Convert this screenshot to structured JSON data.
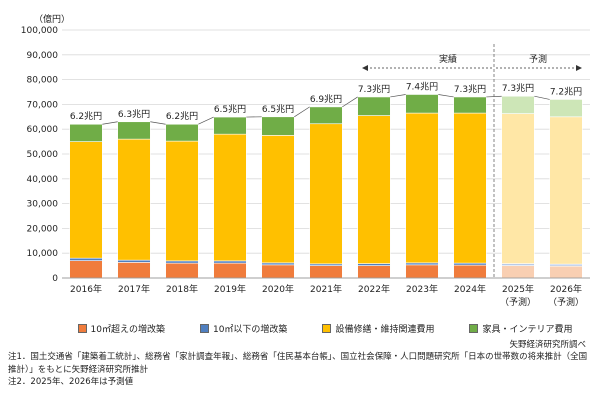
{
  "chart_data": {
    "type": "bar",
    "stacked": true,
    "unit_label": "（億円）",
    "categories": [
      "2016年",
      "2017年",
      "2018年",
      "2019年",
      "2020年",
      "2021年",
      "2022年",
      "2023年",
      "2024年",
      "2025年",
      "2026年"
    ],
    "category_sublabels": [
      "",
      "",
      "",
      "",
      "",
      "",
      "",
      "",
      "",
      "（予測）",
      "（予測）"
    ],
    "forecast_from_index": 9,
    "totals_labels": [
      "6.2兆円",
      "6.3兆円",
      "6.2兆円",
      "6.5兆円",
      "6.5兆円",
      "6.9兆円",
      "7.3兆円",
      "7.4兆円",
      "7.3兆円",
      "7.3兆円",
      "7.2兆円"
    ],
    "period_labels": {
      "actual": "実績",
      "forecast": "予測"
    },
    "ylim": [
      0,
      100000
    ],
    "yticks": [
      0,
      10000,
      20000,
      30000,
      40000,
      50000,
      60000,
      70000,
      80000,
      90000,
      100000
    ],
    "ytick_labels": [
      "0",
      "10,000",
      "20,000",
      "30,000",
      "40,000",
      "50,000",
      "60,000",
      "70,000",
      "80,000",
      "90,000",
      "100,000"
    ],
    "series": [
      {
        "name": "10㎡超えの増改築",
        "color": "#F07C3C",
        "forecast_color": "#F9CFB2",
        "values": [
          7000,
          6300,
          6000,
          6000,
          5300,
          5000,
          5000,
          5300,
          5200,
          5000,
          4800
        ]
      },
      {
        "name": "10㎡以下の増改築",
        "color": "#4F7FC0",
        "forecast_color": "#B9CBE8",
        "values": [
          1000,
          900,
          900,
          900,
          800,
          700,
          800,
          800,
          800,
          800,
          800
        ]
      },
      {
        "name": "設備修繕・維持関連費用",
        "color": "#FFC000",
        "forecast_color": "#FFE7A6",
        "values": [
          47000,
          48800,
          48300,
          51100,
          51400,
          56500,
          59700,
          60400,
          60500,
          60500,
          59400
        ]
      },
      {
        "name": "家具・インテリア費用",
        "color": "#70AD47",
        "forecast_color": "#CDE6B7",
        "values": [
          7000,
          7000,
          6800,
          6900,
          7500,
          6800,
          7500,
          7500,
          6500,
          7000,
          7000
        ]
      }
    ]
  },
  "source": "矢野経済研究所調べ",
  "notes": [
    "注1．国土交通省「建築着工統計」、総務省「家計調査年報」、総務省「住民基本台帳」、国立社会保障・人口問題研究所「日本の世帯数の将来推計（全国推計）」をもとに矢野経済研究所推計",
    "注2．2025年、2026年は予測値"
  ]
}
